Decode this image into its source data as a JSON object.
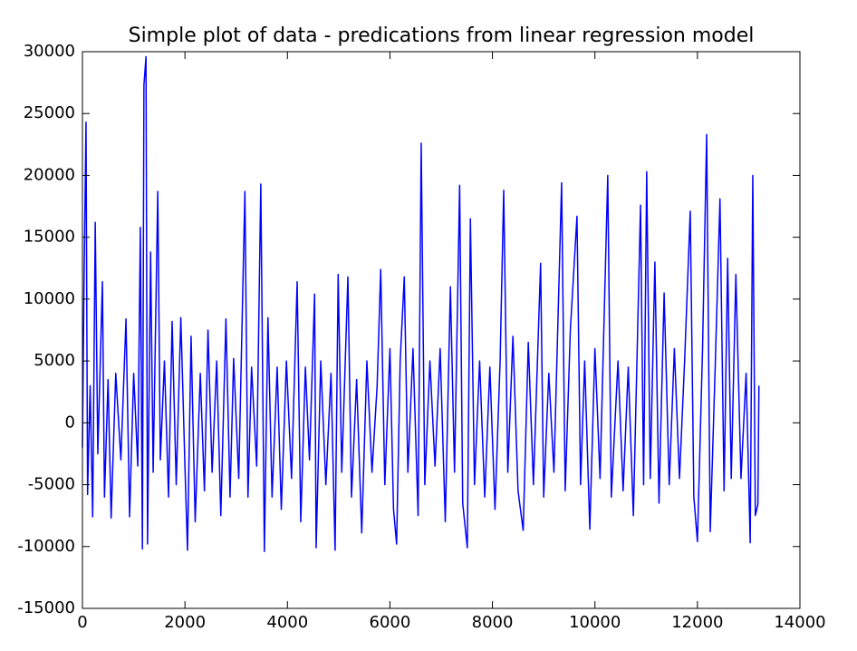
{
  "chart_data": {
    "type": "line",
    "title": "Simple plot of data - predications from linear regression model",
    "color": "#0000ff",
    "x": [
      0,
      30,
      70,
      100,
      150,
      200,
      250,
      300,
      390,
      430,
      500,
      560,
      650,
      750,
      850,
      920,
      1000,
      1080,
      1130,
      1170,
      1200,
      1240,
      1270,
      1330,
      1380,
      1470,
      1520,
      1600,
      1680,
      1750,
      1830,
      1920,
      2000,
      2050,
      2120,
      2200,
      2300,
      2380,
      2450,
      2530,
      2620,
      2700,
      2800,
      2880,
      2950,
      3050,
      3170,
      3230,
      3300,
      3400,
      3480,
      3550,
      3620,
      3700,
      3800,
      3880,
      3980,
      4080,
      4190,
      4260,
      4350,
      4430,
      4530,
      4560,
      4650,
      4750,
      4850,
      4930,
      4990,
      5060,
      5180,
      5250,
      5350,
      5450,
      5550,
      5650,
      5750,
      5820,
      5900,
      6000,
      6070,
      6130,
      6200,
      6280,
      6350,
      6450,
      6550,
      6610,
      6680,
      6780,
      6880,
      6980,
      7080,
      7180,
      7260,
      7360,
      7420,
      7510,
      7570,
      7650,
      7750,
      7850,
      7950,
      8050,
      8150,
      8220,
      8300,
      8400,
      8500,
      8600,
      8700,
      8800,
      8940,
      9000,
      9100,
      9200,
      9350,
      9420,
      9520,
      9650,
      9720,
      9800,
      9900,
      10000,
      10100,
      10250,
      10320,
      10450,
      10550,
      10650,
      10750,
      10890,
      10950,
      11010,
      11080,
      11170,
      11250,
      11350,
      11450,
      11550,
      11650,
      11750,
      11860,
      11930,
      12000,
      12100,
      12180,
      12250,
      12350,
      12440,
      12520,
      12590,
      12660,
      12750,
      12850,
      12950,
      13030,
      13080,
      13130,
      13180,
      13200
    ],
    "values": [
      -2000,
      11000,
      24300,
      -5800,
      3000,
      -7600,
      16200,
      -2500,
      11400,
      -6000,
      3500,
      -7700,
      4000,
      -3000,
      8400,
      -7600,
      4000,
      -3500,
      15800,
      -10200,
      27300,
      29600,
      -9800,
      13800,
      -4000,
      18700,
      -3000,
      5000,
      -6000,
      8200,
      -5000,
      8500,
      -3500,
      -10300,
      7000,
      -8000,
      4000,
      -5500,
      7500,
      -4000,
      5000,
      -7500,
      8400,
      -6000,
      5200,
      -4500,
      18700,
      -6000,
      4500,
      -3500,
      19300,
      -10400,
      8500,
      -6000,
      4500,
      -7000,
      5000,
      -4500,
      11400,
      -8000,
      4500,
      -3000,
      10400,
      -10100,
      5000,
      -5000,
      4000,
      -10300,
      12000,
      -4000,
      11800,
      -6000,
      3500,
      -8900,
      5000,
      -4000,
      3000,
      12400,
      -5000,
      6000,
      -7000,
      -9800,
      5000,
      11800,
      -4000,
      6000,
      -7500,
      22600,
      -5000,
      5000,
      -3500,
      6000,
      -8000,
      11000,
      -4000,
      19200,
      -6500,
      -10100,
      16500,
      -5000,
      5000,
      -6000,
      4500,
      -7000,
      5000,
      18800,
      -4000,
      7000,
      -5500,
      -8700,
      6500,
      -5000,
      12900,
      -6000,
      4000,
      -4000,
      19400,
      -5500,
      7500,
      16700,
      -5000,
      5000,
      -8600,
      6000,
      -4500,
      20000,
      -6000,
      5000,
      -5500,
      4500,
      -7500,
      17600,
      -5000,
      20300,
      -4500,
      13000,
      -6500,
      10500,
      -5000,
      6000,
      -4500,
      5000,
      17100,
      -6000,
      -9600,
      6000,
      23300,
      -8800,
      5000,
      18100,
      -5500,
      13300,
      -4500,
      12000,
      -4500,
      4000,
      -9700,
      20000,
      -7500,
      -6600,
      3000
    ],
    "xlim": [
      0,
      14000
    ],
    "ylim": [
      -15000,
      30000
    ],
    "xticks": [
      0,
      2000,
      4000,
      6000,
      8000,
      10000,
      12000,
      14000
    ],
    "yticks": [
      -15000,
      -10000,
      -5000,
      0,
      5000,
      10000,
      15000,
      20000,
      25000,
      30000
    ]
  }
}
